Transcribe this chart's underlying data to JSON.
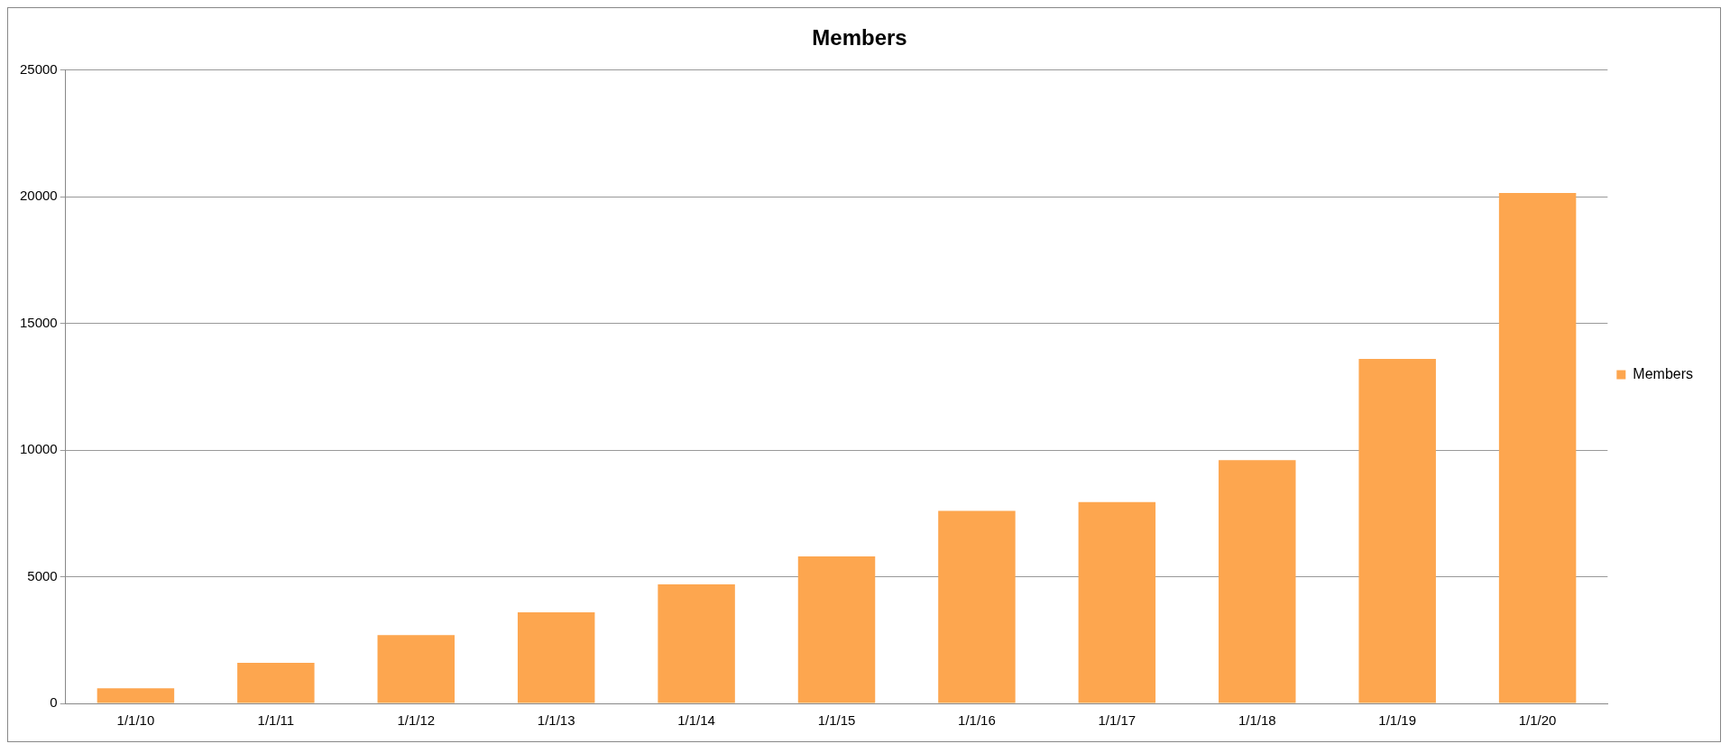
{
  "chart_data": {
    "type": "bar",
    "title": "Members",
    "categories": [
      "1/1/10",
      "1/1/11",
      "1/1/12",
      "1/1/13",
      "1/1/14",
      "1/1/15",
      "1/1/16",
      "1/1/17",
      "1/1/18",
      "1/1/19",
      "1/1/20"
    ],
    "series": [
      {
        "name": "Members",
        "color": "#fda64f",
        "values": [
          600,
          1600,
          2700,
          3600,
          4700,
          5800,
          7600,
          7950,
          9600,
          13600,
          20150
        ]
      }
    ],
    "ylim": [
      0,
      25000
    ],
    "yticks": [
      0,
      5000,
      10000,
      15000,
      20000,
      25000
    ],
    "grid": "y",
    "legend": "right"
  }
}
